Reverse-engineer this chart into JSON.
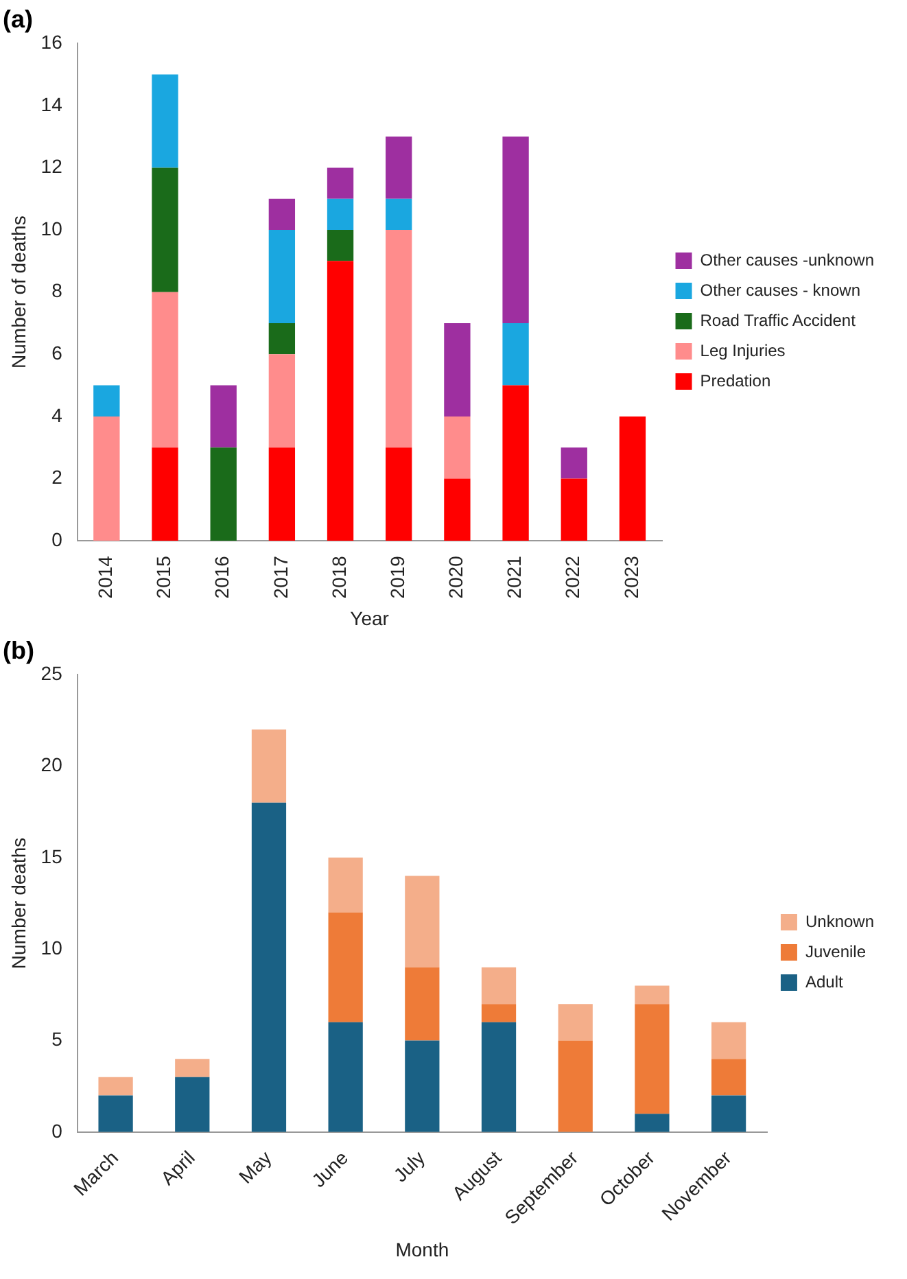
{
  "chart_data": [
    {
      "type": "bar",
      "title": "(a)",
      "xlabel": "Year",
      "ylabel": "Number of deaths",
      "categories": [
        "2014",
        "2015",
        "2016",
        "2017",
        "2018",
        "2019",
        "2020",
        "2021",
        "2022",
        "2023"
      ],
      "stacked": true,
      "ylim": [
        0,
        16
      ],
      "yticks": [
        0,
        2,
        4,
        6,
        8,
        10,
        12,
        14,
        16
      ],
      "grid": false,
      "legend": "right",
      "series": [
        {
          "name": "Predation",
          "color": "#ff0000",
          "values": [
            0,
            3,
            0,
            3,
            9,
            3,
            2,
            5,
            2,
            4
          ]
        },
        {
          "name": "Leg Injuries",
          "color": "#ff8c8c",
          "values": [
            4,
            5,
            0,
            3,
            0,
            7,
            2,
            0,
            0,
            0
          ]
        },
        {
          "name": "Road Traffic Accident",
          "color": "#1a6b1a",
          "values": [
            0,
            4,
            3,
            1,
            1,
            0,
            0,
            0,
            0,
            0
          ]
        },
        {
          "name": "Other causes - known",
          "color": "#1aa7e0",
          "values": [
            1,
            3,
            0,
            3,
            1,
            1,
            0,
            2,
            0,
            0
          ]
        },
        {
          "name": "Other causes -unknown",
          "color": "#9e2fa0",
          "values": [
            0,
            0,
            2,
            1,
            1,
            2,
            3,
            6,
            1,
            0
          ]
        }
      ]
    },
    {
      "type": "bar",
      "title": "(b)",
      "xlabel": "Month",
      "ylabel": "Number deaths",
      "categories": [
        "March",
        "April",
        "May",
        "June",
        "July",
        "August",
        "September",
        "October",
        "November"
      ],
      "stacked": true,
      "ylim": [
        0,
        25
      ],
      "yticks": [
        0,
        5,
        10,
        15,
        20,
        25
      ],
      "grid": false,
      "legend": "right",
      "series": [
        {
          "name": "Adult",
          "color": "#1a6185",
          "values": [
            2,
            3,
            18,
            6,
            5,
            6,
            0,
            1,
            2
          ]
        },
        {
          "name": "Juvenile",
          "color": "#ee7b38",
          "values": [
            0,
            0,
            0,
            6,
            4,
            1,
            5,
            6,
            2
          ]
        },
        {
          "name": "Unknown",
          "color": "#f4ae8a",
          "values": [
            1,
            1,
            4,
            3,
            5,
            2,
            2,
            1,
            2
          ]
        }
      ]
    }
  ]
}
